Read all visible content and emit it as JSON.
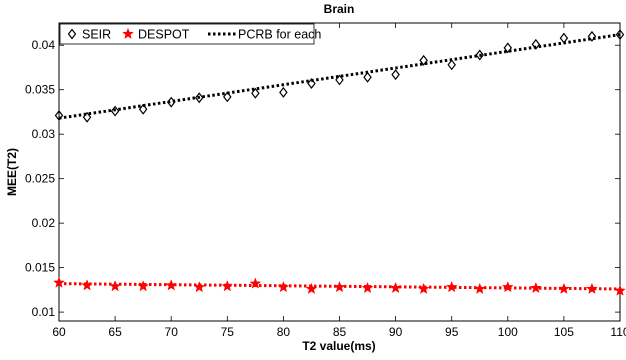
{
  "chart_data": {
    "type": "scatter",
    "title": "Brain",
    "xlabel": "T2 value(ms)",
    "ylabel": "MEE(T2)",
    "xlim": [
      60,
      110
    ],
    "ylim": [
      0.009,
      0.0425
    ],
    "xticks": [
      60,
      65,
      70,
      75,
      80,
      85,
      90,
      95,
      100,
      105,
      110
    ],
    "yticks": [
      0.01,
      0.015,
      0.02,
      0.025,
      0.03,
      0.035,
      0.04
    ],
    "ytick_labels": [
      "0.01",
      "0.015",
      "0.02",
      "0.025",
      "0.03",
      "0.035",
      "0.04"
    ],
    "grid": false,
    "legend_position": "top-left",
    "series": [
      {
        "name": "SEIR",
        "marker": "diamond",
        "color": "#000000",
        "x": [
          60,
          62.5,
          65,
          67.5,
          70,
          72.5,
          75,
          77.5,
          80,
          82.5,
          85,
          87.5,
          90,
          92.5,
          95,
          97.5,
          100,
          102.5,
          105,
          107.5,
          110
        ],
        "y": [
          0.0321,
          0.0319,
          0.0326,
          0.0328,
          0.0336,
          0.0341,
          0.0342,
          0.0346,
          0.0347,
          0.0357,
          0.0361,
          0.0364,
          0.0367,
          0.0383,
          0.0378,
          0.0389,
          0.0397,
          0.0401,
          0.0408,
          0.041,
          0.0412
        ]
      },
      {
        "name": "DESPOT",
        "marker": "star",
        "color": "#ff0000",
        "x": [
          60,
          62.5,
          65,
          67.5,
          70,
          72.5,
          75,
          77.5,
          80,
          82.5,
          85,
          87.5,
          90,
          92.5,
          95,
          97.5,
          100,
          102.5,
          105,
          107.5,
          110
        ],
        "y": [
          0.0133,
          0.013,
          0.0129,
          0.0129,
          0.013,
          0.0128,
          0.0129,
          0.0132,
          0.0128,
          0.0126,
          0.0128,
          0.0127,
          0.0127,
          0.0126,
          0.0128,
          0.0126,
          0.0128,
          0.0127,
          0.0126,
          0.0126,
          0.0124
        ]
      }
    ],
    "reference_lines": [
      {
        "name": "PCRB for each",
        "style": "dotted",
        "color": "#000000",
        "x": [
          60,
          110
        ],
        "y": [
          0.0318,
          0.0412
        ]
      },
      {
        "name": "",
        "style": "dotted",
        "color": "#ff0000",
        "x": [
          60,
          110
        ],
        "y": [
          0.0132,
          0.0126
        ]
      }
    ],
    "legend": [
      "SEIR",
      "DESPOT",
      "PCRB for each"
    ]
  }
}
